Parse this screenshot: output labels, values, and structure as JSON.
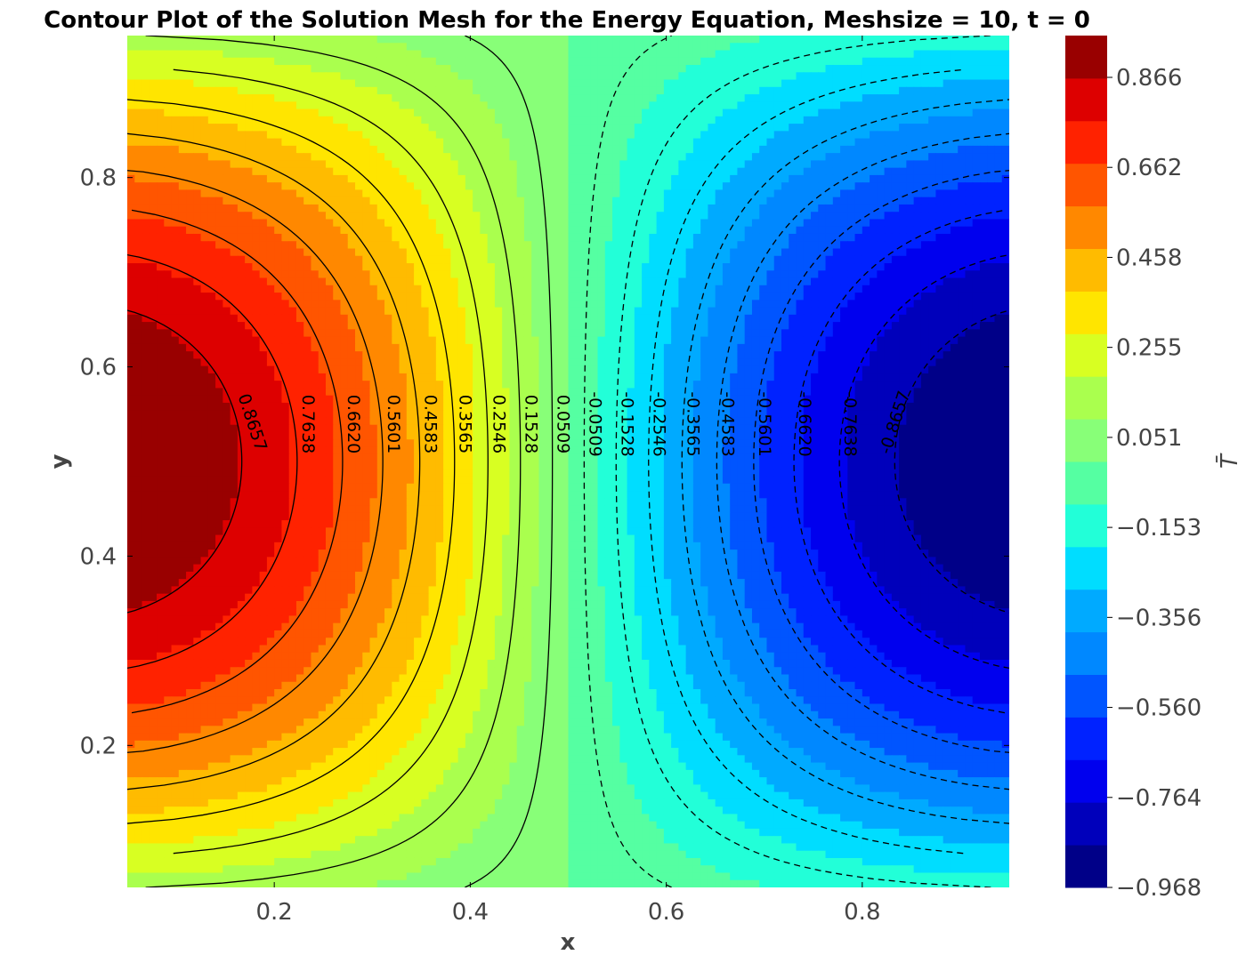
{
  "chart_data": {
    "type": "contour",
    "title": "Contour Plot of the Solution Mesh for the Energy Equation, Meshsize = 10, t = 0",
    "xlabel": "x",
    "ylabel": "y",
    "colorbar_label": "T̄",
    "xlim": [
      0.05,
      0.95
    ],
    "ylim": [
      0.05,
      0.95
    ],
    "x_ticks": [
      "0.2",
      "0.4",
      "0.6",
      "0.8"
    ],
    "y_ticks": [
      "0.2",
      "0.4",
      "0.6",
      "0.8"
    ],
    "field": "T = cos(pi*x) * sin(pi*y)",
    "grid": false,
    "legend": "colorbar-right",
    "colormap": "jet",
    "colorbar_ticks": [
      "0.866",
      "0.662",
      "0.458",
      "0.255",
      "0.051",
      "−0.153",
      "−0.356",
      "−0.560",
      "−0.764",
      "−0.968"
    ],
    "contour_levels": [
      0.8657,
      0.7638,
      0.662,
      0.5601,
      0.4583,
      0.3565,
      0.2546,
      0.1528,
      0.0509,
      -0.0509,
      -0.1528,
      -0.2546,
      -0.3565,
      -0.4583,
      -0.5601,
      -0.662,
      -0.7638,
      -0.8657
    ],
    "contour_labels": [
      "0.8657",
      "0.7638",
      "0.6620",
      "0.5601",
      "0.4583",
      "0.3565",
      "0.2546",
      "0.1528",
      "0.0509",
      "-0.0509",
      "-0.1528",
      "-0.2546",
      "-0.3565",
      "-0.4583",
      "-0.5601",
      "-0.6620",
      "-0.7638",
      "-0.8657"
    ],
    "negative_contours_style": "dashed",
    "colorbar_colors": [
      "#000088",
      "#0000bb",
      "#0000ee",
      "#0022ff",
      "#0055ff",
      "#0088ff",
      "#00aaff",
      "#00ddff",
      "#22ffd8",
      "#55ffa2",
      "#88ff78",
      "#aaff4e",
      "#d8ff22",
      "#ffe500",
      "#ffbb00",
      "#ff8800",
      "#ff5500",
      "#ff2200",
      "#dd0000",
      "#990000"
    ]
  }
}
